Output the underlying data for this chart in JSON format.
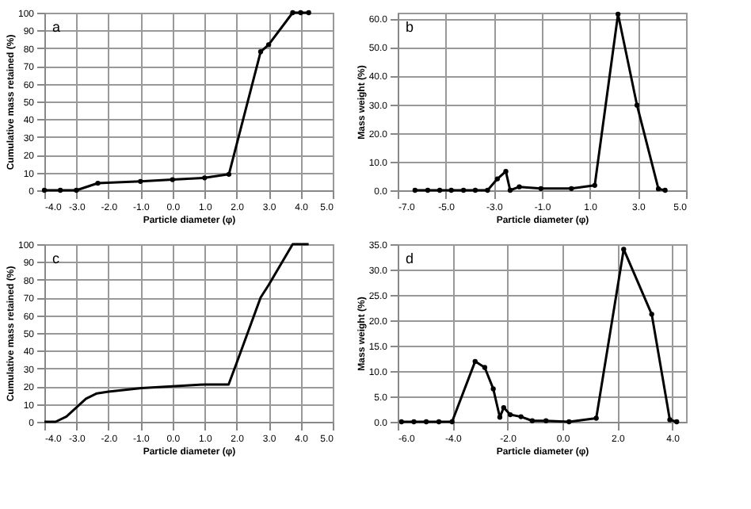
{
  "chart_data": [
    {
      "type": "line",
      "xlabel": "Particle diameter (φ)",
      "ylabel": "Cumulative mass retained (%)",
      "annotations": [
        "a"
      ],
      "marker": "circle",
      "grid": true,
      "x": [
        -4.0,
        -3.5,
        -3.0,
        -2.33,
        -1.0,
        0.0,
        1.0,
        1.76,
        2.75,
        3.0,
        3.75,
        4.0,
        4.25
      ],
      "series": [
        {
          "color": "#000000",
          "values": [
            0,
            0,
            0,
            4,
            5,
            6,
            7,
            9,
            78,
            82,
            100,
            100,
            100
          ]
        }
      ],
      "xlim": [
        -4,
        5
      ],
      "xticks": [
        {
          "value": -4,
          "label": "-4.0"
        },
        {
          "value": -3,
          "label": "-3.0"
        },
        {
          "value": -2,
          "label": "-2.0"
        },
        {
          "value": -1,
          "label": "-1.0"
        },
        {
          "value": 0,
          "label": "0.0"
        },
        {
          "value": 1,
          "label": "1.0"
        },
        {
          "value": 2,
          "label": "2.0"
        },
        {
          "value": 3,
          "label": "3.0"
        },
        {
          "value": 4,
          "label": "4.0"
        },
        {
          "value": 5,
          "label": "5.0"
        }
      ],
      "ylim": [
        0,
        100
      ],
      "yticks": [
        0,
        10,
        20,
        30,
        40,
        50,
        60,
        70,
        80,
        90,
        100
      ]
    },
    {
      "type": "line",
      "xlabel": "Particle diameter (φ)",
      "ylabel": "Mass weight (%)",
      "annotations": [
        "b"
      ],
      "marker": "circle",
      "grid": true,
      "x": [
        -6.28,
        -5.75,
        -5.25,
        -4.77,
        -4.26,
        -3.77,
        -3.26,
        -2.85,
        -2.5,
        -2.32,
        -1.94,
        -1.04,
        0.23,
        1.2,
        2.17,
        2.96,
        3.85,
        4.13
      ],
      "series": [
        {
          "color": "#000000",
          "values": [
            0,
            0,
            0,
            0,
            0,
            0,
            0,
            4,
            6.6,
            0,
            1.2,
            0.6,
            0.6,
            1.7,
            61.5,
            29.7,
            0.5,
            0
          ]
        }
      ],
      "xlim": [
        -7,
        5
      ],
      "xticks": [
        {
          "value": -7,
          "label": "-7.0"
        },
        {
          "value": -5,
          "label": "-5.0"
        },
        {
          "value": -3,
          "label": "-3.0"
        },
        {
          "value": -1,
          "label": "-1.0"
        },
        {
          "value": 1,
          "label": "1.0"
        },
        {
          "value": 3,
          "label": "3.0"
        },
        {
          "value": 5,
          "label": "5.0"
        }
      ],
      "ylim": [
        0,
        62
      ],
      "yticks": [
        {
          "value": 0,
          "label": "0.0"
        },
        {
          "value": 10,
          "label": "10.0"
        },
        {
          "value": 20,
          "label": "20.0"
        },
        {
          "value": 30,
          "label": "30.0"
        },
        {
          "value": 40,
          "label": "40.0"
        },
        {
          "value": 50,
          "label": "50.0"
        },
        {
          "value": 60,
          "label": "60.0"
        }
      ]
    },
    {
      "type": "line",
      "xlabel": "Particle diameter (φ)",
      "ylabel": "Cumulative mass retained (%)",
      "annotations": [
        "c"
      ],
      "grid": true,
      "x": [
        -4.0,
        -3.65,
        -3.31,
        -2.7,
        -2.36,
        -2.0,
        -0.97,
        0.0,
        1.0,
        1.75,
        2.02,
        2.75,
        3.0,
        3.75,
        4.0,
        4.25
      ],
      "series": [
        {
          "color": "#000000",
          "values": [
            0,
            0,
            3,
            13,
            16,
            17,
            19,
            20,
            21,
            21,
            34,
            70,
            77,
            100,
            100,
            100
          ]
        }
      ],
      "xlim": [
        -4,
        5
      ],
      "xticks": [
        {
          "value": -4,
          "label": "-4.0"
        },
        {
          "value": -3,
          "label": "-3.0"
        },
        {
          "value": -2,
          "label": "-2.0"
        },
        {
          "value": -1,
          "label": "-1.0"
        },
        {
          "value": 0,
          "label": "0.0"
        },
        {
          "value": 1,
          "label": "1.0"
        },
        {
          "value": 2,
          "label": "2.0"
        },
        {
          "value": 3,
          "label": "3.0"
        },
        {
          "value": 4,
          "label": "4.0"
        },
        {
          "value": 5,
          "label": "5.0"
        }
      ],
      "ylim": [
        0,
        100
      ],
      "yticks": [
        0,
        10,
        20,
        30,
        40,
        50,
        60,
        70,
        80,
        90,
        100
      ]
    },
    {
      "type": "line",
      "xlabel": "Particle diameter (φ)",
      "ylabel": "Mass weight (%)",
      "annotations": [
        "d"
      ],
      "marker": "circle",
      "grid": true,
      "x": [
        -5.86,
        -5.41,
        -4.96,
        -4.5,
        -4.02,
        -3.18,
        -2.83,
        -2.52,
        -2.28,
        -2.14,
        -1.9,
        -1.51,
        -1.1,
        -0.6,
        0.24,
        1.23,
        2.23,
        3.25,
        3.91,
        4.16
      ],
      "series": [
        {
          "color": "#000000",
          "values": [
            0,
            0,
            0,
            0,
            0,
            11.9,
            10.7,
            6.5,
            0.9,
            2.8,
            1.4,
            1.0,
            0.2,
            0.2,
            0,
            0.7,
            34,
            21.2,
            0.4,
            0
          ]
        }
      ],
      "xlim": [
        -6,
        4.5
      ],
      "xticks": [
        {
          "value": -6,
          "label": "-6.0"
        },
        {
          "value": -4,
          "label": "-4.0"
        },
        {
          "value": -2,
          "label": "-2.0"
        },
        {
          "value": 0,
          "label": "0.0"
        },
        {
          "value": 2,
          "label": "2.0"
        },
        {
          "value": 4,
          "label": "4.0"
        }
      ],
      "ylim": [
        0,
        35
      ],
      "yticks": [
        {
          "value": 0,
          "label": "0.0"
        },
        {
          "value": 5,
          "label": "5.0"
        },
        {
          "value": 10,
          "label": "10.0"
        },
        {
          "value": 15,
          "label": "15.0"
        },
        {
          "value": 20,
          "label": "20.0"
        },
        {
          "value": 25,
          "label": "25.0"
        },
        {
          "value": 30,
          "label": "30.0"
        },
        {
          "value": 35,
          "label": "35.0"
        }
      ]
    }
  ]
}
